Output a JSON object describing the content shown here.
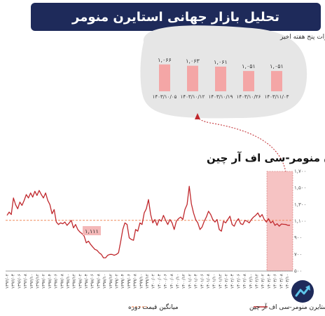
{
  "header": {
    "title": "تحلیل بازار جهانی استایرن منومر"
  },
  "chart_data": [
    {
      "type": "bar",
      "title": "تغییرات پنج هفته اخیر",
      "categories": [
        "۱۴۰۳/۱۰/۰۵",
        "۱۴۰۳/۱۰/۱۲",
        "۱۴۰۳/۱۰/۱۹",
        "۱۴۰۳/۱۰/۲۶",
        "۱۴۰۳/۱۱/۰۳"
      ],
      "values": [
        1066,
        1063,
        1061,
        1051,
        1051
      ],
      "value_labels": [
        "۱,۰۶۶",
        "۱,۰۶۳",
        "۱,۰۶۱",
        "۱,۰۵۱",
        "۱,۰۵۱"
      ],
      "color": "#f4a6a6"
    },
    {
      "type": "line",
      "title": "استایرن منومر-سی اف آر چین",
      "y_ticks": [
        "۱,۷۰۰",
        "۱,۵۰۰",
        "۱,۳۰۰",
        "۱,۱۰۰",
        "۹۰۰",
        "۷۰۰",
        "۵۰۰"
      ],
      "y_tick_values": [
        1700,
        1500,
        1300,
        1100,
        900,
        700,
        500
      ],
      "ylim": [
        500,
        1700
      ],
      "x_ticks": [
        "۱۳۹۶/۰۲",
        "۱۳۹۶/۰۴",
        "۱۳۹۶/۰۶",
        "۱۳۹۶/۰۸",
        "۱۳۹۶/۱۰",
        "۱۳۹۶/۱۲",
        "۱۳۹۷/۰۲",
        "۱۳۹۷/۰۴",
        "۱۳۹۷/۰۶",
        "۱۳۹۷/۰۸",
        "۱۳۹۷/۱۰",
        "۱۳۹۷/۱۲",
        "۱۳۹۸/۰۲",
        "۱۳۹۸/۰۴",
        "۱۳۹۸/۰۶",
        "۱۳۹۸/۰۸",
        "۱۳۹۸/۱۰",
        "۱۳۹۸/۱۲",
        "۱۳۹۹/۰۲",
        "۱۳۹۹/۰۴",
        "۱۳۹۹/۰۶",
        "۱۳۹۹/۰۸",
        "۱۳۹۹/۱۰",
        "۱۳۹۹/۱۲",
        "۱۴۰۰/۰۲",
        "۱۴۰۰/۰۴",
        "۱۴۰۰/۰۶",
        "۱۴۰۰/۰۸",
        "۱۴۰۰/۱۰",
        "۱۴۰۰/۱۲",
        "۱۴۰۱/۰۲",
        "۱۴۰۱/۰۴",
        "۱۴۰۱/۰۶",
        "۱۴۰۱/۰۸",
        "۱۴۰۱/۱۰",
        "۱۴۰۱/۱۲",
        "۱۴۰۲/۰۲",
        "۱۴۰۲/۰۴",
        "۱۴۰۲/۰۶",
        "۱۴۰۲/۰۸",
        "۱۴۰۲/۱۰",
        "۱۴۰۲/۱۲",
        "۱۴۰۳/۰۲",
        "۱۴۰۳/۰۴",
        "۱۴۰۳/۰۶",
        "۱۴۰۳/۰۸",
        "۱۴۰۳/۱۰"
      ],
      "series": [
        {
          "name": "استایرن منومر-سی اف آر چین",
          "color": "#c0282d",
          "values": [
            1170,
            1210,
            1180,
            1380,
            1300,
            1250,
            1330,
            1290,
            1350,
            1420,
            1380,
            1440,
            1390,
            1460,
            1410,
            1470,
            1420,
            1380,
            1440,
            1350,
            1300,
            1190,
            1240,
            1090,
            1060,
            1080,
            1070,
            1090,
            1050,
            1080,
            1110,
            1020,
            1060,
            1000,
            970,
            950,
            920,
            840,
            860,
            820,
            790,
            760,
            750,
            720,
            700,
            660,
            660,
            690,
            700,
            700,
            690,
            700,
            720,
            850,
            1000,
            1080,
            1060,
            900,
            880,
            870,
            1000,
            980,
            1080,
            1060,
            1200,
            1250,
            1360,
            1180,
            1080,
            1120,
            1050,
            1120,
            1100,
            1170,
            1110,
            1060,
            1120,
            1080,
            1000,
            1100,
            1130,
            1150,
            1120,
            1240,
            1300,
            1520,
            1310,
            1200,
            1120,
            1080,
            1000,
            1030,
            1100,
            1150,
            1220,
            1180,
            1120,
            1090,
            1120,
            1000,
            980,
            1100,
            1080,
            1120,
            1160,
            1060,
            1040,
            1100,
            1130,
            1070,
            1060,
            1110,
            1100,
            1080,
            1120,
            1150,
            1170,
            1200,
            1150,
            1180,
            1120,
            1090,
            1130,
            1080,
            1100,
            1050,
            1070,
            1040,
            1066,
            1063,
            1061,
            1051,
            1051
          ]
        },
        {
          "name": "میانگین قیمت دوره",
          "color": "#f08a5d",
          "style": "dashed",
          "constant": 1111
        }
      ],
      "annotation": "۱,۱۱۱",
      "legend_position": "bottom"
    }
  ]
}
